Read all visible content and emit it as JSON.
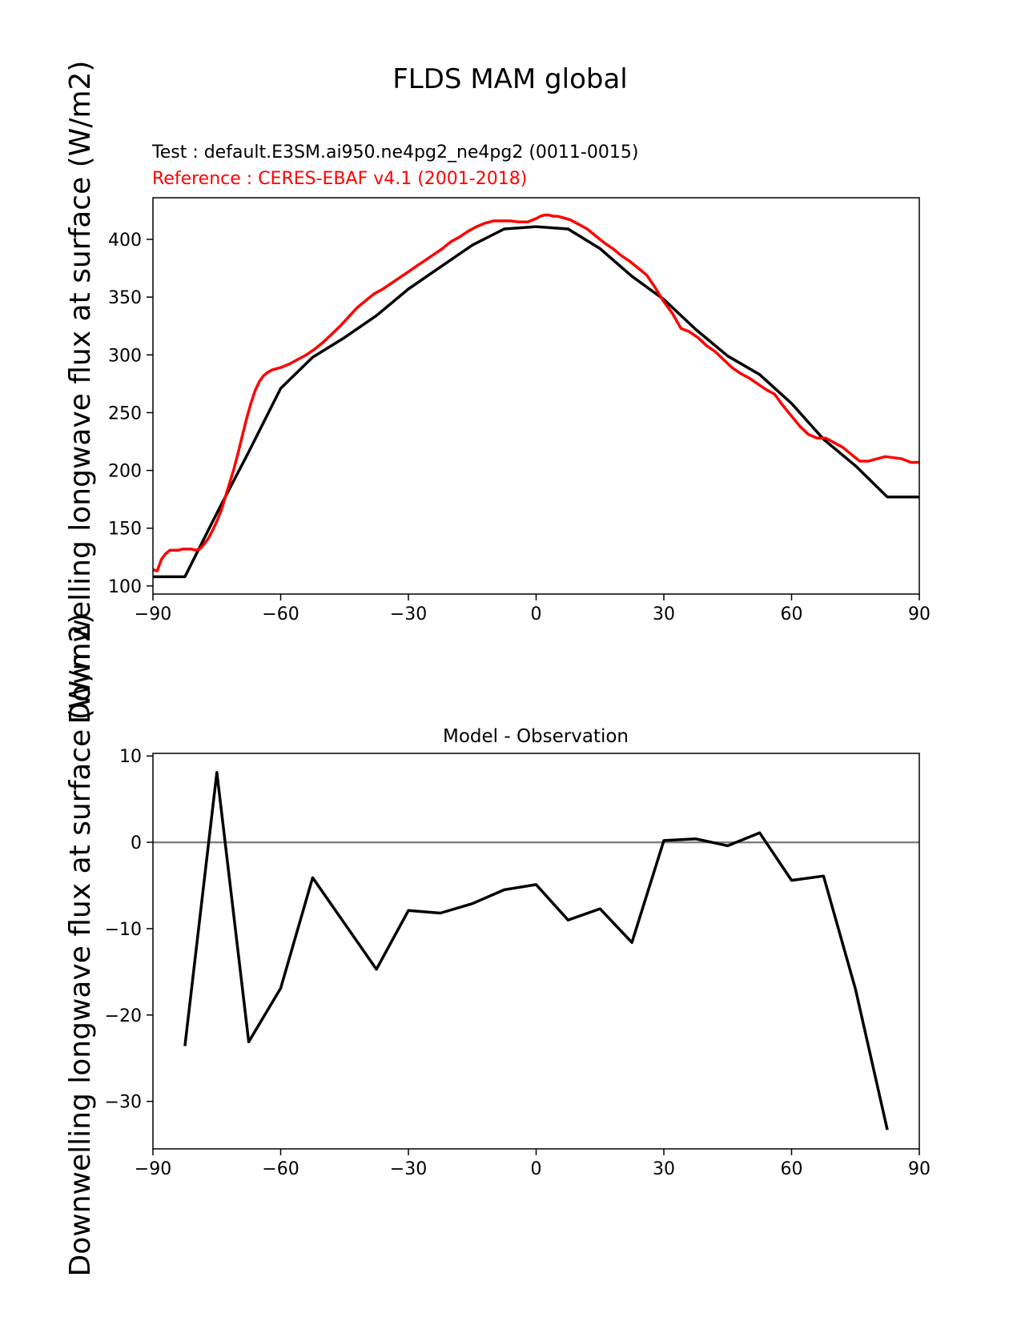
{
  "figure_title": "FLDS MAM global",
  "chart_data": [
    {
      "type": "line",
      "test_label": "Test : default.E3SM.ai950.ne4pg2_ne4pg2 (0011-0015)",
      "reference_label": "Reference : CERES-EBAF v4.1 (2001-2018)",
      "ylabel": "Downwelling longwave flux at surface (W/m2)",
      "xlim": [
        -90,
        90
      ],
      "ylim": [
        93,
        436
      ],
      "xticks": [
        -90,
        -60,
        -30,
        0,
        30,
        60,
        90
      ],
      "xtick_labels": [
        "−90",
        "−60",
        "−30",
        "0",
        "30",
        "60",
        "90"
      ],
      "yticks": [
        100,
        150,
        200,
        250,
        300,
        350,
        400
      ],
      "ytick_labels": [
        "100",
        "150",
        "200",
        "250",
        "300",
        "350",
        "400"
      ],
      "series": [
        {
          "name": "Test",
          "color": "#000000",
          "x": [
            -90,
            -82.5,
            -75,
            -67.5,
            -60,
            -52.5,
            -45,
            -37.5,
            -30,
            -22.5,
            -15,
            -7.5,
            0,
            7.5,
            15,
            22.5,
            30,
            37.5,
            45,
            52.5,
            60,
            67.5,
            75,
            82.5,
            90
          ],
          "y": [
            108,
            108,
            163,
            216,
            271,
            298,
            315,
            334,
            357,
            376,
            395,
            409,
            411,
            409,
            392,
            368,
            348,
            322,
            299,
            283,
            258,
            227,
            204,
            177,
            177
          ]
        },
        {
          "name": "Reference",
          "color": "#ff0000",
          "x": [
            -90,
            -89,
            -88,
            -87,
            -86,
            -85,
            -84,
            -83,
            -82,
            -81,
            -80,
            -79,
            -78,
            -77,
            -76,
            -75,
            -74,
            -73,
            -72,
            -71,
            -70,
            -69,
            -68,
            -67,
            -66,
            -65,
            -64,
            -63,
            -62,
            -61,
            -60,
            -58,
            -56,
            -54,
            -52,
            -50,
            -48,
            -46,
            -44,
            -42,
            -40,
            -38,
            -36,
            -34,
            -32,
            -30,
            -28,
            -26,
            -24,
            -22,
            -20,
            -18,
            -16,
            -14,
            -12,
            -10,
            -8,
            -6,
            -4,
            -2,
            0,
            1,
            2,
            3,
            4,
            5,
            6,
            8,
            10,
            12,
            14,
            16,
            18,
            20,
            22,
            24,
            26,
            28,
            30,
            32,
            34,
            36,
            38,
            40,
            42,
            44,
            46,
            48,
            50,
            52,
            54,
            56,
            58,
            60,
            62,
            64,
            66,
            68,
            70,
            72,
            74,
            76,
            78,
            80,
            82,
            84,
            86,
            88,
            89,
            90
          ],
          "y": [
            114,
            113,
            123,
            128,
            131,
            131,
            131,
            132,
            132,
            132,
            131,
            132,
            136,
            141,
            148,
            156,
            165,
            177,
            189,
            201,
            215,
            230,
            245,
            258,
            269,
            277,
            282,
            285,
            287,
            288,
            289,
            292,
            296,
            300,
            305,
            311,
            318,
            325,
            333,
            341,
            347,
            353,
            357,
            362,
            367,
            372,
            377,
            382,
            387,
            392,
            398,
            402,
            407,
            411,
            414,
            416,
            416,
            416,
            415,
            415,
            418,
            420,
            421,
            421,
            420,
            420,
            419,
            417,
            413,
            409,
            403,
            397,
            392,
            386,
            381,
            375,
            369,
            358,
            346,
            336,
            323,
            320,
            315,
            308,
            303,
            296,
            289,
            284,
            280,
            275,
            270,
            266,
            256,
            247,
            238,
            231,
            228,
            228,
            224,
            220,
            214,
            208,
            208,
            210,
            212,
            211,
            210,
            207,
            207,
            207
          ]
        }
      ]
    },
    {
      "type": "line",
      "title": "Model - Observation",
      "ylabel": "Downwelling longwave flux at surface (W/m2)",
      "xlim": [
        -90,
        90
      ],
      "ylim": [
        -35.5,
        10.3
      ],
      "xticks": [
        -90,
        -60,
        -30,
        0,
        30,
        60,
        90
      ],
      "xtick_labels": [
        "−90",
        "−60",
        "−30",
        "0",
        "30",
        "60",
        "90"
      ],
      "yticks": [
        -30,
        -20,
        -10,
        0,
        10
      ],
      "ytick_labels": [
        "−30",
        "−20",
        "−10",
        "0",
        "10"
      ],
      "zero_line_color": "#808080",
      "series": [
        {
          "name": "Difference",
          "color": "#000000",
          "x": [
            -82.5,
            -75,
            -67.5,
            -60,
            -52.5,
            -45,
            -37.5,
            -30,
            -22.5,
            -15,
            -7.5,
            0,
            7.5,
            15,
            22.5,
            30,
            37.5,
            45,
            52.5,
            60,
            67.5,
            75,
            82.5
          ],
          "y": [
            -23.6,
            8.1,
            -23.1,
            -16.9,
            -4.1,
            -9.4,
            -14.7,
            -7.9,
            -8.2,
            -7.1,
            -5.5,
            -4.9,
            -9.0,
            -7.7,
            -11.6,
            0.2,
            0.4,
            -0.4,
            1.1,
            -4.4,
            -3.9,
            -17.0,
            -33.3
          ]
        }
      ]
    }
  ]
}
